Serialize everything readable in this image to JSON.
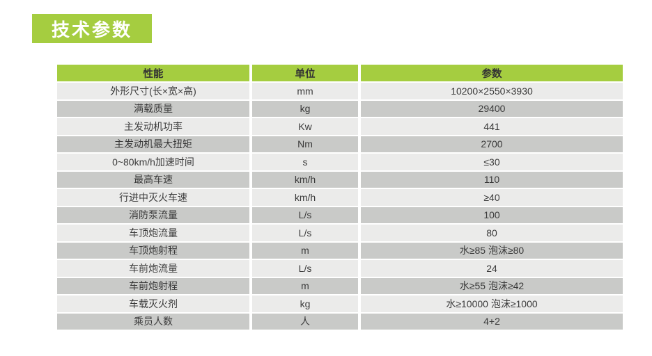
{
  "page": {
    "title_badge": "技术参数"
  },
  "colors": {
    "green": "#A5CD40",
    "row_light": "#EBEBEA",
    "row_dark": "#C9CAC8",
    "text": "#3A3A3A"
  },
  "table": {
    "headers": {
      "performance": "性能",
      "unit": "单位",
      "parameter": "参数"
    },
    "rows": [
      {
        "name": "外形尺寸(长×宽×高)",
        "unit": "mm",
        "value": "10200×2550×3930"
      },
      {
        "name": "满载质量",
        "unit": "kg",
        "value": "29400"
      },
      {
        "name": "主发动机功率",
        "unit": "Kw",
        "value": "441"
      },
      {
        "name": "主发动机最大扭矩",
        "unit": "Nm",
        "value": "2700"
      },
      {
        "name": "0~80km/h加速时间",
        "unit": "s",
        "value": "≤30"
      },
      {
        "name": "最高车速",
        "unit": "km/h",
        "value": "110"
      },
      {
        "name": "行进中灭火车速",
        "unit": "km/h",
        "value": "≥40"
      },
      {
        "name": "消防泵流量",
        "unit": "L/s",
        "value": "100"
      },
      {
        "name": "车顶炮流量",
        "unit": "L/s",
        "value": "80"
      },
      {
        "name": "车顶炮射程",
        "unit": "m",
        "value": "水≥85 泡沫≥80"
      },
      {
        "name": "车前炮流量",
        "unit": "L/s",
        "value": "24"
      },
      {
        "name": "车前炮射程",
        "unit": "m",
        "value": "水≥55 泡沫≥42"
      },
      {
        "name": "车载灭火剂",
        "unit": "kg",
        "value": "水≥10000 泡沫≥1000"
      },
      {
        "name": "乘员人数",
        "unit": "人",
        "value": "4+2"
      }
    ]
  }
}
